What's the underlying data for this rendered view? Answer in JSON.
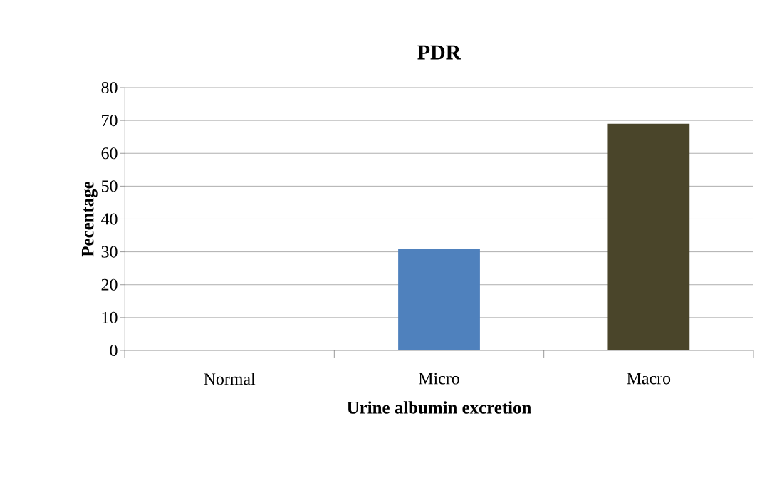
{
  "chart_data": {
    "type": "bar",
    "title": "PDR",
    "xlabel": "Urine albumin excretion",
    "ylabel": "Pecentage",
    "categories": [
      "Normal",
      "Micro",
      "Macro"
    ],
    "values": [
      0,
      31,
      69
    ],
    "colors": [
      "#4f81bd",
      "#4f81bd",
      "#4a452a"
    ],
    "ylim": [
      0,
      80
    ],
    "yticks": [
      0,
      10,
      20,
      30,
      40,
      50,
      60,
      70,
      80
    ],
    "grid": "y"
  }
}
